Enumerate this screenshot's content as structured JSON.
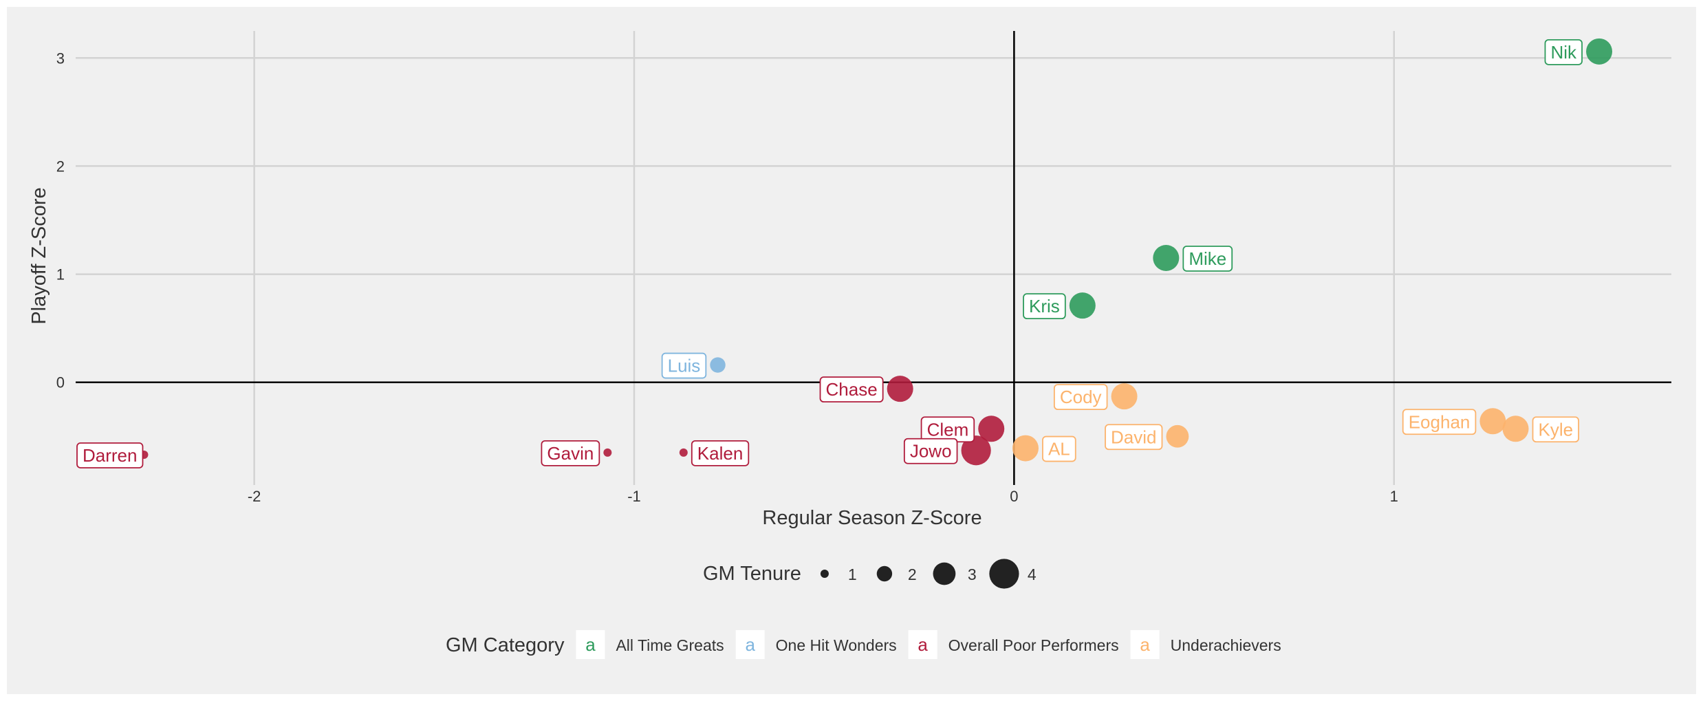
{
  "chart_data": {
    "type": "scatter",
    "xlabel": "Regular Season Z-Score",
    "ylabel": "Playoff Z-Score",
    "xlim": [
      -2.47,
      1.73
    ],
    "ylim": [
      -0.95,
      3.25
    ],
    "x_ticks": [
      {
        "value": -2,
        "label": "-2"
      },
      {
        "value": -1,
        "label": "-1"
      },
      {
        "value": 0,
        "label": "0"
      },
      {
        "value": 1,
        "label": "1"
      }
    ],
    "y_ticks": [
      {
        "value": 0,
        "label": "0"
      },
      {
        "value": 1,
        "label": "1"
      },
      {
        "value": 2,
        "label": "2"
      },
      {
        "value": 3,
        "label": "3"
      }
    ],
    "grid": true,
    "reference_lines": {
      "x": 0,
      "y": 0
    },
    "categories": [
      {
        "name": "All Time Greats",
        "color": "#2e9b5c"
      },
      {
        "name": "One Hit Wonders",
        "color": "#7fb5de"
      },
      {
        "name": "Overall Poor Performers",
        "color": "#b01c3c"
      },
      {
        "name": "Underachievers",
        "color": "#fcb36c"
      }
    ],
    "points": [
      {
        "name": "Nik",
        "x": 1.54,
        "y": 3.06,
        "tenure": 3.5,
        "category": "All Time Greats",
        "label_side": "left"
      },
      {
        "name": "Mike",
        "x": 0.4,
        "y": 1.15,
        "tenure": 3.5,
        "category": "All Time Greats",
        "label_side": "right"
      },
      {
        "name": "Kris",
        "x": 0.18,
        "y": 0.71,
        "tenure": 3.5,
        "category": "All Time Greats",
        "label_side": "left"
      },
      {
        "name": "Luis",
        "x": -0.78,
        "y": 0.16,
        "tenure": 2,
        "category": "One Hit Wonders",
        "label_side": "left"
      },
      {
        "name": "Chase",
        "x": -0.3,
        "y": -0.06,
        "tenure": 3.5,
        "category": "Overall Poor Performers",
        "label_side": "left"
      },
      {
        "name": "Clem",
        "x": -0.06,
        "y": -0.43,
        "tenure": 3.5,
        "category": "Overall Poor Performers",
        "label_side": "left"
      },
      {
        "name": "Jowo",
        "x": -0.1,
        "y": -0.63,
        "tenure": 4,
        "category": "Overall Poor Performers",
        "label_side": "left"
      },
      {
        "name": "Kalen",
        "x": -0.87,
        "y": -0.65,
        "tenure": 1,
        "category": "Overall Poor Performers",
        "label_side": "right"
      },
      {
        "name": "Gavin",
        "x": -1.07,
        "y": -0.65,
        "tenure": 1,
        "category": "Overall Poor Performers",
        "label_side": "left"
      },
      {
        "name": "Darren",
        "x": -2.29,
        "y": -0.67,
        "tenure": 1,
        "category": "Overall Poor Performers",
        "label_side": "left"
      },
      {
        "name": "Cody",
        "x": 0.29,
        "y": -0.13,
        "tenure": 3.5,
        "category": "Underachievers",
        "label_side": "left"
      },
      {
        "name": "David",
        "x": 0.43,
        "y": -0.5,
        "tenure": 3,
        "category": "Underachievers",
        "label_side": "left"
      },
      {
        "name": "AL",
        "x": 0.03,
        "y": -0.61,
        "tenure": 3.5,
        "category": "Underachievers",
        "label_side": "right"
      },
      {
        "name": "Eoghan",
        "x": 1.26,
        "y": -0.36,
        "tenure": 3.5,
        "category": "Underachievers",
        "label_side": "left"
      },
      {
        "name": "Kyle",
        "x": 1.32,
        "y": -0.43,
        "tenure": 3.5,
        "category": "Underachievers",
        "label_side": "right"
      }
    ],
    "legend_size": {
      "title": "GM Tenure",
      "entries": [
        {
          "label": "1",
          "value": 1
        },
        {
          "label": "2",
          "value": 2
        },
        {
          "label": "3",
          "value": 3
        },
        {
          "label": "4",
          "value": 4
        }
      ]
    },
    "legend_color": {
      "title": "GM Category",
      "key_glyph": "a"
    }
  }
}
